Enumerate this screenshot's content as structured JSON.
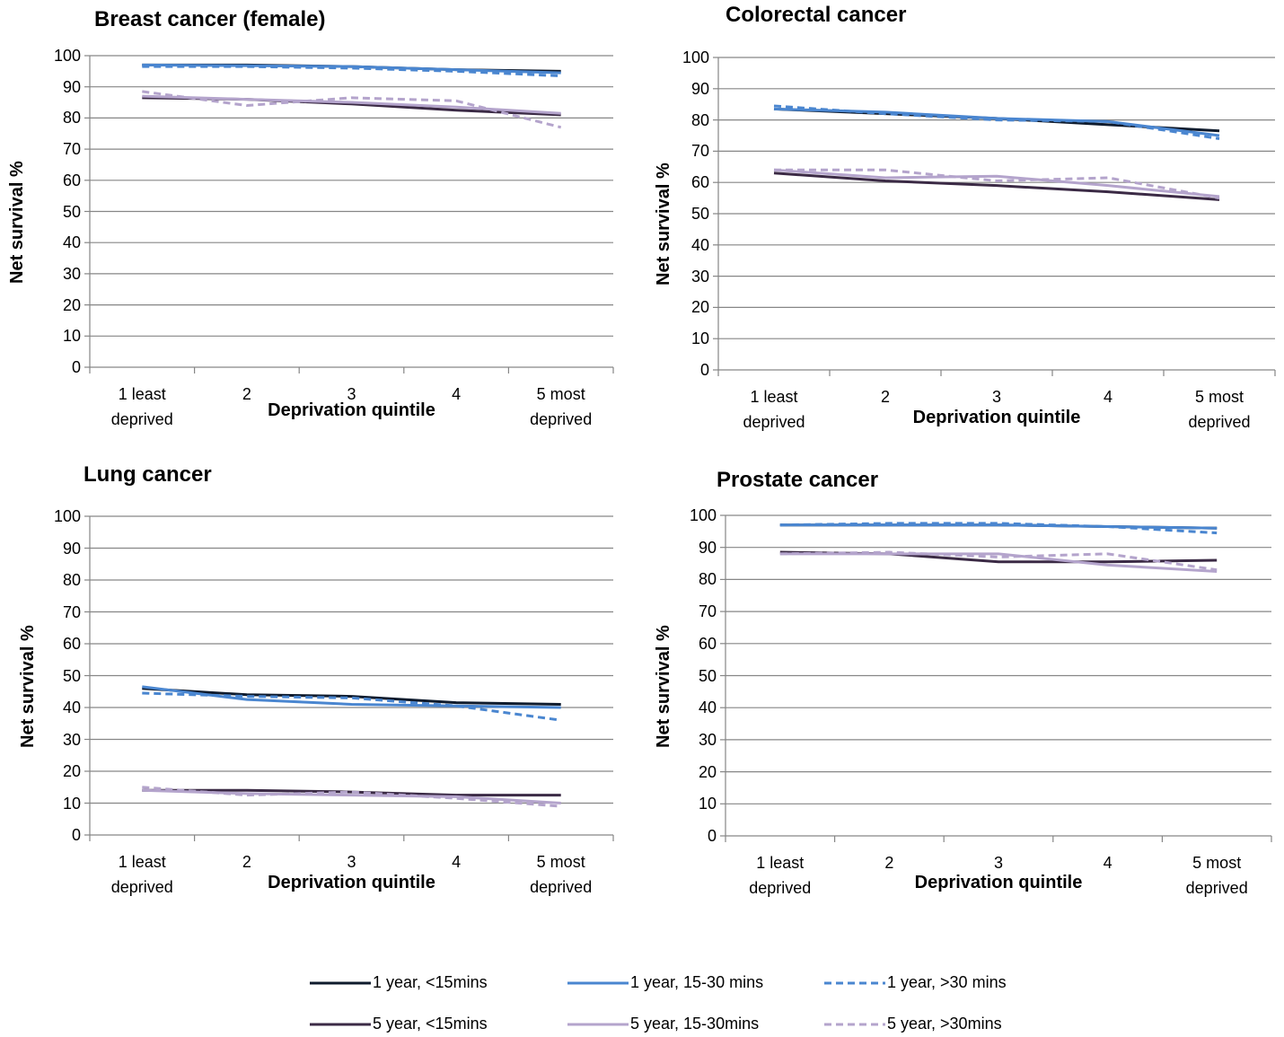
{
  "chart_data": [
    {
      "type": "line",
      "title": "Breast cancer (female)",
      "x_label": "Deprivation quintile",
      "y_label": "Net survival %",
      "categories": [
        "1 least deprived",
        "2",
        "3",
        "4",
        "5 most deprived"
      ],
      "ylim": [
        0,
        100
      ],
      "yticks": [
        0,
        10,
        20,
        30,
        40,
        50,
        60,
        70,
        80,
        90,
        100
      ],
      "grid": true,
      "series": [
        {
          "color": "#0f1b2d",
          "dashed": false,
          "values": [
            97,
            97,
            96.5,
            95.5,
            95
          ]
        },
        {
          "color": "#4a86d0",
          "dashed": false,
          "values": [
            97,
            96.8,
            96.5,
            95.5,
            94.5
          ]
        },
        {
          "color": "#4a86d0",
          "dashed": true,
          "values": [
            96.5,
            96.5,
            96,
            95,
            93.5
          ]
        },
        {
          "color": "#3b2a45",
          "dashed": false,
          "values": [
            86.5,
            86,
            84.5,
            82.5,
            81
          ]
        },
        {
          "color": "#b4a4cc",
          "dashed": false,
          "values": [
            87,
            86,
            85,
            83.5,
            81.5
          ]
        },
        {
          "color": "#b4a4cc",
          "dashed": true,
          "values": [
            88.5,
            84,
            86.5,
            85.5,
            77
          ]
        }
      ]
    },
    {
      "type": "line",
      "title": "Colorectal cancer",
      "x_label": "Deprivation quintile",
      "y_label": "Net survival %",
      "categories": [
        "1 least deprived",
        "2",
        "3",
        "4",
        "5 most deprived"
      ],
      "ylim": [
        0,
        100
      ],
      "yticks": [
        0,
        10,
        20,
        30,
        40,
        50,
        60,
        70,
        80,
        90,
        100
      ],
      "grid": true,
      "series": [
        {
          "color": "#0f1b2d",
          "dashed": false,
          "values": [
            83.5,
            82,
            80.5,
            78.5,
            76.5
          ]
        },
        {
          "color": "#4a86d0",
          "dashed": false,
          "values": [
            83.5,
            82.5,
            80.5,
            79.5,
            75
          ]
        },
        {
          "color": "#4a86d0",
          "dashed": true,
          "values": [
            84.5,
            82,
            80,
            79.5,
            74
          ]
        },
        {
          "color": "#3b2a45",
          "dashed": false,
          "values": [
            63,
            60.5,
            59,
            57,
            54.5
          ]
        },
        {
          "color": "#b4a4cc",
          "dashed": false,
          "values": [
            64,
            61.5,
            62,
            59,
            55.5
          ]
        },
        {
          "color": "#b4a4cc",
          "dashed": true,
          "values": [
            64,
            64,
            60.5,
            61.5,
            55
          ]
        }
      ]
    },
    {
      "type": "line",
      "title": "Lung cancer",
      "x_label": "Deprivation quintile",
      "y_label": "Net survival %",
      "categories": [
        "1 least deprived",
        "2",
        "3",
        "4",
        "5 most deprived"
      ],
      "ylim": [
        0,
        100
      ],
      "yticks": [
        0,
        10,
        20,
        30,
        40,
        50,
        60,
        70,
        80,
        90,
        100
      ],
      "grid": true,
      "series": [
        {
          "color": "#0f1b2d",
          "dashed": false,
          "values": [
            46,
            44,
            43.5,
            41.5,
            41
          ]
        },
        {
          "color": "#4a86d0",
          "dashed": false,
          "values": [
            46.5,
            42.5,
            41,
            40.5,
            40
          ]
        },
        {
          "color": "#4a86d0",
          "dashed": true,
          "values": [
            44.5,
            43.5,
            43,
            40.5,
            36
          ]
        },
        {
          "color": "#3b2a45",
          "dashed": false,
          "values": [
            14,
            14,
            13.5,
            12.5,
            12.5
          ]
        },
        {
          "color": "#b4a4cc",
          "dashed": false,
          "values": [
            14,
            13,
            12.5,
            12,
            10
          ]
        },
        {
          "color": "#b4a4cc",
          "dashed": true,
          "values": [
            15,
            12.5,
            13.5,
            11.5,
            9
          ]
        }
      ]
    },
    {
      "type": "line",
      "title": "Prostate cancer",
      "x_label": "Deprivation quintile",
      "y_label": "Net survival %",
      "categories": [
        "1 least deprived",
        "2",
        "3",
        "4",
        "5 most deprived"
      ],
      "ylim": [
        0,
        100
      ],
      "yticks": [
        0,
        10,
        20,
        30,
        40,
        50,
        60,
        70,
        80,
        90,
        100
      ],
      "grid": true,
      "series": [
        {
          "color": "#0f1b2d",
          "dashed": false,
          "values": [
            97,
            97,
            97,
            96.5,
            96
          ]
        },
        {
          "color": "#4a86d0",
          "dashed": false,
          "values": [
            97,
            97,
            97,
            96.5,
            96
          ]
        },
        {
          "color": "#4a86d0",
          "dashed": true,
          "values": [
            97,
            97.5,
            97.5,
            96.5,
            94.5
          ]
        },
        {
          "color": "#3b2a45",
          "dashed": false,
          "values": [
            88.5,
            88,
            85.5,
            85.5,
            86
          ]
        },
        {
          "color": "#b4a4cc",
          "dashed": false,
          "values": [
            88,
            88,
            88,
            84.5,
            82.5
          ]
        },
        {
          "color": "#b4a4cc",
          "dashed": true,
          "values": [
            88,
            88.5,
            87,
            88,
            83
          ]
        }
      ]
    }
  ],
  "legend": [
    "1 year, <15mins",
    "1 year, 15-30 mins",
    "1 year, >30 mins",
    "5 year, <15mins",
    "5 year, 15-30mins",
    "5 year, >30mins"
  ]
}
